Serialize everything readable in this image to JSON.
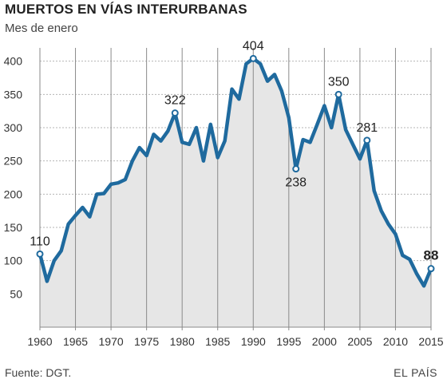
{
  "header": {
    "title": "MUERTOS EN VÍAS INTERURBANAS",
    "subtitle": "Mes de enero"
  },
  "footer": {
    "source": "Fuente: DGT.",
    "brand": "EL PAÍS"
  },
  "colors": {
    "line": "#1f6a9e",
    "area": "#e6e6e6",
    "grid": "#b5b5b5",
    "marker_fill": "#ffffff"
  },
  "chart_data": {
    "type": "area",
    "title": "MUERTOS EN VÍAS INTERURBANAS",
    "subtitle": "Mes de enero",
    "xlabel": "",
    "ylabel": "",
    "xlim": [
      1960,
      2015
    ],
    "ylim": [
      0,
      420
    ],
    "grid": true,
    "x_ticks": [
      1960,
      1965,
      1970,
      1975,
      1980,
      1985,
      1990,
      1995,
      2000,
      2005,
      2010,
      2015
    ],
    "y_ticks": [
      50,
      100,
      150,
      200,
      250,
      300,
      350,
      400
    ],
    "x": [
      1960,
      1961,
      1962,
      1963,
      1964,
      1965,
      1966,
      1967,
      1968,
      1969,
      1970,
      1971,
      1972,
      1973,
      1974,
      1975,
      1976,
      1977,
      1978,
      1979,
      1980,
      1981,
      1982,
      1983,
      1984,
      1985,
      1986,
      1987,
      1988,
      1989,
      1990,
      1991,
      1992,
      1993,
      1994,
      1995,
      1996,
      1997,
      1998,
      1999,
      2000,
      2001,
      2002,
      2003,
      2004,
      2005,
      2006,
      2007,
      2008,
      2009,
      2010,
      2011,
      2012,
      2013,
      2014,
      2015
    ],
    "values": [
      110,
      69,
      100,
      115,
      155,
      168,
      180,
      166,
      200,
      201,
      215,
      217,
      222,
      250,
      270,
      258,
      290,
      280,
      295,
      322,
      278,
      275,
      300,
      250,
      305,
      255,
      280,
      358,
      343,
      396,
      404,
      396,
      370,
      380,
      355,
      315,
      238,
      282,
      278,
      305,
      333,
      300,
      350,
      297,
      275,
      253,
      281,
      205,
      175,
      155,
      140,
      108,
      102,
      80,
      62,
      88
    ],
    "annotations": [
      {
        "x": 1960,
        "value": 110,
        "label": "110"
      },
      {
        "x": 1979,
        "value": 322,
        "label": "322"
      },
      {
        "x": 1990,
        "value": 404,
        "label": "404"
      },
      {
        "x": 1996,
        "value": 238,
        "label": "238"
      },
      {
        "x": 2002,
        "value": 350,
        "label": "350"
      },
      {
        "x": 2006,
        "value": 281,
        "label": "281"
      },
      {
        "x": 2015,
        "value": 88,
        "label": "88",
        "bold": true
      }
    ]
  }
}
